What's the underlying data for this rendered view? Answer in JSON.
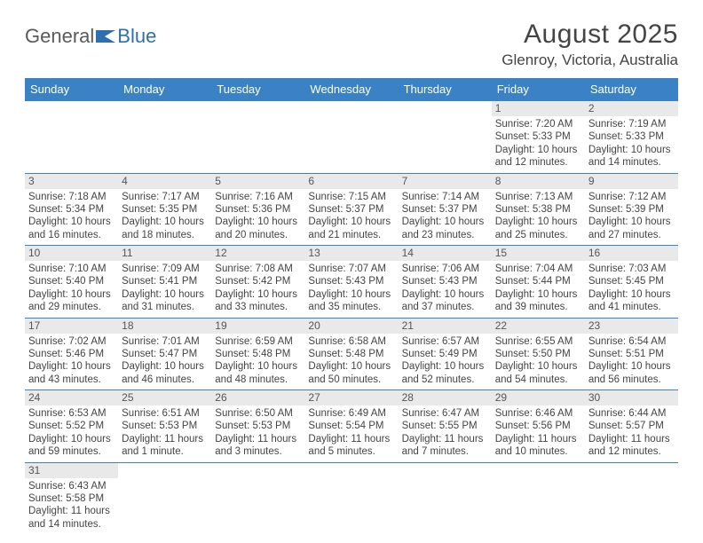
{
  "logo": {
    "text1": "General",
    "text2": "Blue"
  },
  "title": "August 2025",
  "location": "Glenroy, Victoria, Australia",
  "header_bg": "#3b82c4",
  "border_color": "#3b82c4",
  "daynum_bg": "#e9e9e9",
  "days": [
    "Sunday",
    "Monday",
    "Tuesday",
    "Wednesday",
    "Thursday",
    "Friday",
    "Saturday"
  ],
  "weeks": [
    [
      {
        "n": "",
        "l1": "",
        "l2": "",
        "l3": "",
        "l4": ""
      },
      {
        "n": "",
        "l1": "",
        "l2": "",
        "l3": "",
        "l4": ""
      },
      {
        "n": "",
        "l1": "",
        "l2": "",
        "l3": "",
        "l4": ""
      },
      {
        "n": "",
        "l1": "",
        "l2": "",
        "l3": "",
        "l4": ""
      },
      {
        "n": "",
        "l1": "",
        "l2": "",
        "l3": "",
        "l4": ""
      },
      {
        "n": "1",
        "l1": "Sunrise: 7:20 AM",
        "l2": "Sunset: 5:33 PM",
        "l3": "Daylight: 10 hours",
        "l4": "and 12 minutes."
      },
      {
        "n": "2",
        "l1": "Sunrise: 7:19 AM",
        "l2": "Sunset: 5:33 PM",
        "l3": "Daylight: 10 hours",
        "l4": "and 14 minutes."
      }
    ],
    [
      {
        "n": "3",
        "l1": "Sunrise: 7:18 AM",
        "l2": "Sunset: 5:34 PM",
        "l3": "Daylight: 10 hours",
        "l4": "and 16 minutes."
      },
      {
        "n": "4",
        "l1": "Sunrise: 7:17 AM",
        "l2": "Sunset: 5:35 PM",
        "l3": "Daylight: 10 hours",
        "l4": "and 18 minutes."
      },
      {
        "n": "5",
        "l1": "Sunrise: 7:16 AM",
        "l2": "Sunset: 5:36 PM",
        "l3": "Daylight: 10 hours",
        "l4": "and 20 minutes."
      },
      {
        "n": "6",
        "l1": "Sunrise: 7:15 AM",
        "l2": "Sunset: 5:37 PM",
        "l3": "Daylight: 10 hours",
        "l4": "and 21 minutes."
      },
      {
        "n": "7",
        "l1": "Sunrise: 7:14 AM",
        "l2": "Sunset: 5:37 PM",
        "l3": "Daylight: 10 hours",
        "l4": "and 23 minutes."
      },
      {
        "n": "8",
        "l1": "Sunrise: 7:13 AM",
        "l2": "Sunset: 5:38 PM",
        "l3": "Daylight: 10 hours",
        "l4": "and 25 minutes."
      },
      {
        "n": "9",
        "l1": "Sunrise: 7:12 AM",
        "l2": "Sunset: 5:39 PM",
        "l3": "Daylight: 10 hours",
        "l4": "and 27 minutes."
      }
    ],
    [
      {
        "n": "10",
        "l1": "Sunrise: 7:10 AM",
        "l2": "Sunset: 5:40 PM",
        "l3": "Daylight: 10 hours",
        "l4": "and 29 minutes."
      },
      {
        "n": "11",
        "l1": "Sunrise: 7:09 AM",
        "l2": "Sunset: 5:41 PM",
        "l3": "Daylight: 10 hours",
        "l4": "and 31 minutes."
      },
      {
        "n": "12",
        "l1": "Sunrise: 7:08 AM",
        "l2": "Sunset: 5:42 PM",
        "l3": "Daylight: 10 hours",
        "l4": "and 33 minutes."
      },
      {
        "n": "13",
        "l1": "Sunrise: 7:07 AM",
        "l2": "Sunset: 5:43 PM",
        "l3": "Daylight: 10 hours",
        "l4": "and 35 minutes."
      },
      {
        "n": "14",
        "l1": "Sunrise: 7:06 AM",
        "l2": "Sunset: 5:43 PM",
        "l3": "Daylight: 10 hours",
        "l4": "and 37 minutes."
      },
      {
        "n": "15",
        "l1": "Sunrise: 7:04 AM",
        "l2": "Sunset: 5:44 PM",
        "l3": "Daylight: 10 hours",
        "l4": "and 39 minutes."
      },
      {
        "n": "16",
        "l1": "Sunrise: 7:03 AM",
        "l2": "Sunset: 5:45 PM",
        "l3": "Daylight: 10 hours",
        "l4": "and 41 minutes."
      }
    ],
    [
      {
        "n": "17",
        "l1": "Sunrise: 7:02 AM",
        "l2": "Sunset: 5:46 PM",
        "l3": "Daylight: 10 hours",
        "l4": "and 43 minutes."
      },
      {
        "n": "18",
        "l1": "Sunrise: 7:01 AM",
        "l2": "Sunset: 5:47 PM",
        "l3": "Daylight: 10 hours",
        "l4": "and 46 minutes."
      },
      {
        "n": "19",
        "l1": "Sunrise: 6:59 AM",
        "l2": "Sunset: 5:48 PM",
        "l3": "Daylight: 10 hours",
        "l4": "and 48 minutes."
      },
      {
        "n": "20",
        "l1": "Sunrise: 6:58 AM",
        "l2": "Sunset: 5:48 PM",
        "l3": "Daylight: 10 hours",
        "l4": "and 50 minutes."
      },
      {
        "n": "21",
        "l1": "Sunrise: 6:57 AM",
        "l2": "Sunset: 5:49 PM",
        "l3": "Daylight: 10 hours",
        "l4": "and 52 minutes."
      },
      {
        "n": "22",
        "l1": "Sunrise: 6:55 AM",
        "l2": "Sunset: 5:50 PM",
        "l3": "Daylight: 10 hours",
        "l4": "and 54 minutes."
      },
      {
        "n": "23",
        "l1": "Sunrise: 6:54 AM",
        "l2": "Sunset: 5:51 PM",
        "l3": "Daylight: 10 hours",
        "l4": "and 56 minutes."
      }
    ],
    [
      {
        "n": "24",
        "l1": "Sunrise: 6:53 AM",
        "l2": "Sunset: 5:52 PM",
        "l3": "Daylight: 10 hours",
        "l4": "and 59 minutes."
      },
      {
        "n": "25",
        "l1": "Sunrise: 6:51 AM",
        "l2": "Sunset: 5:53 PM",
        "l3": "Daylight: 11 hours",
        "l4": "and 1 minute."
      },
      {
        "n": "26",
        "l1": "Sunrise: 6:50 AM",
        "l2": "Sunset: 5:53 PM",
        "l3": "Daylight: 11 hours",
        "l4": "and 3 minutes."
      },
      {
        "n": "27",
        "l1": "Sunrise: 6:49 AM",
        "l2": "Sunset: 5:54 PM",
        "l3": "Daylight: 11 hours",
        "l4": "and 5 minutes."
      },
      {
        "n": "28",
        "l1": "Sunrise: 6:47 AM",
        "l2": "Sunset: 5:55 PM",
        "l3": "Daylight: 11 hours",
        "l4": "and 7 minutes."
      },
      {
        "n": "29",
        "l1": "Sunrise: 6:46 AM",
        "l2": "Sunset: 5:56 PM",
        "l3": "Daylight: 11 hours",
        "l4": "and 10 minutes."
      },
      {
        "n": "30",
        "l1": "Sunrise: 6:44 AM",
        "l2": "Sunset: 5:57 PM",
        "l3": "Daylight: 11 hours",
        "l4": "and 12 minutes."
      }
    ],
    [
      {
        "n": "31",
        "l1": "Sunrise: 6:43 AM",
        "l2": "Sunset: 5:58 PM",
        "l3": "Daylight: 11 hours",
        "l4": "and 14 minutes."
      },
      {
        "n": "",
        "l1": "",
        "l2": "",
        "l3": "",
        "l4": ""
      },
      {
        "n": "",
        "l1": "",
        "l2": "",
        "l3": "",
        "l4": ""
      },
      {
        "n": "",
        "l1": "",
        "l2": "",
        "l3": "",
        "l4": ""
      },
      {
        "n": "",
        "l1": "",
        "l2": "",
        "l3": "",
        "l4": ""
      },
      {
        "n": "",
        "l1": "",
        "l2": "",
        "l3": "",
        "l4": ""
      },
      {
        "n": "",
        "l1": "",
        "l2": "",
        "l3": "",
        "l4": ""
      }
    ]
  ]
}
